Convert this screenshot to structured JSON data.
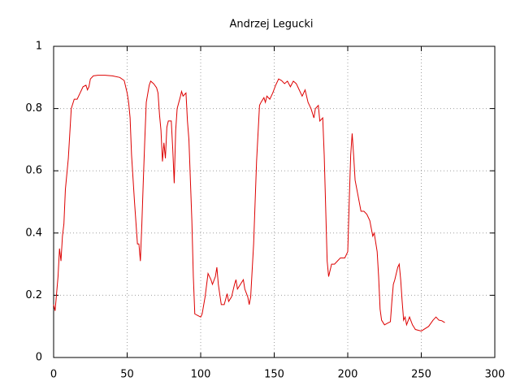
{
  "chart_data": {
    "type": "line",
    "title": "Andrzej Legucki",
    "x": [
      0,
      1,
      3,
      4,
      5,
      6,
      7,
      8,
      10,
      12,
      14,
      16,
      18,
      20,
      22,
      23,
      24,
      25,
      27,
      30,
      35,
      40,
      45,
      48,
      50,
      51,
      52,
      53,
      55,
      57,
      58,
      59,
      60,
      61,
      62,
      63,
      65,
      66,
      68,
      70,
      71,
      72,
      73,
      74,
      75,
      76,
      77,
      78,
      80,
      81,
      82,
      83,
      84,
      86,
      87,
      88,
      90,
      91,
      92,
      94,
      95,
      96,
      98,
      100,
      101,
      103,
      105,
      107,
      108,
      110,
      111,
      112,
      114,
      116,
      118,
      119,
      121,
      123,
      124,
      125,
      127,
      129,
      130,
      132,
      133,
      134,
      136,
      138,
      140,
      141,
      143,
      144,
      145,
      147,
      149,
      151,
      153,
      155,
      157,
      159,
      161,
      163,
      165,
      167,
      169,
      171,
      173,
      175,
      177,
      178,
      180,
      181,
      183,
      184,
      186,
      187,
      189,
      191,
      193,
      195,
      198,
      200,
      201,
      202,
      203,
      204,
      205,
      207,
      209,
      211,
      213,
      215,
      217,
      218,
      220,
      221,
      222,
      223,
      225,
      227,
      229,
      230,
      231,
      232,
      234,
      235,
      236,
      237,
      238,
      239,
      240,
      242,
      244,
      246,
      250,
      255,
      258,
      260,
      262,
      264,
      266
    ],
    "series": [
      {
        "name": "Andrzej Legucki",
        "color": "#dd0000",
        "values": [
          0.17,
          0.15,
          0.26,
          0.35,
          0.31,
          0.39,
          0.43,
          0.54,
          0.64,
          0.8,
          0.83,
          0.83,
          0.85,
          0.87,
          0.875,
          0.86,
          0.87,
          0.895,
          0.905,
          0.907,
          0.907,
          0.905,
          0.9,
          0.89,
          0.85,
          0.82,
          0.77,
          0.65,
          0.5,
          0.365,
          0.365,
          0.31,
          0.43,
          0.57,
          0.7,
          0.82,
          0.875,
          0.888,
          0.88,
          0.867,
          0.85,
          0.78,
          0.73,
          0.63,
          0.69,
          0.64,
          0.74,
          0.76,
          0.76,
          0.67,
          0.56,
          0.73,
          0.8,
          0.835,
          0.855,
          0.84,
          0.85,
          0.76,
          0.7,
          0.44,
          0.26,
          0.14,
          0.135,
          0.13,
          0.14,
          0.195,
          0.27,
          0.25,
          0.235,
          0.26,
          0.29,
          0.235,
          0.17,
          0.17,
          0.205,
          0.18,
          0.195,
          0.235,
          0.25,
          0.22,
          0.235,
          0.25,
          0.22,
          0.195,
          0.17,
          0.195,
          0.365,
          0.63,
          0.81,
          0.82,
          0.835,
          0.82,
          0.84,
          0.83,
          0.85,
          0.875,
          0.895,
          0.89,
          0.88,
          0.888,
          0.87,
          0.888,
          0.88,
          0.86,
          0.84,
          0.86,
          0.82,
          0.8,
          0.77,
          0.8,
          0.81,
          0.76,
          0.77,
          0.65,
          0.31,
          0.26,
          0.3,
          0.3,
          0.31,
          0.32,
          0.32,
          0.34,
          0.5,
          0.65,
          0.72,
          0.65,
          0.57,
          0.52,
          0.47,
          0.47,
          0.46,
          0.44,
          0.39,
          0.4,
          0.34,
          0.26,
          0.155,
          0.12,
          0.105,
          0.11,
          0.115,
          0.18,
          0.235,
          0.25,
          0.29,
          0.3,
          0.25,
          0.18,
          0.12,
          0.13,
          0.105,
          0.13,
          0.105,
          0.09,
          0.085,
          0.1,
          0.12,
          0.13,
          0.12,
          0.118,
          0.112
        ]
      }
    ],
    "xlim": [
      0,
      300
    ],
    "xticks": [
      0,
      50,
      100,
      150,
      200,
      250,
      300
    ],
    "ylim": [
      0,
      1
    ],
    "yticks": [
      0,
      0.2,
      0.4,
      0.6,
      0.8,
      1
    ],
    "grid": true
  }
}
